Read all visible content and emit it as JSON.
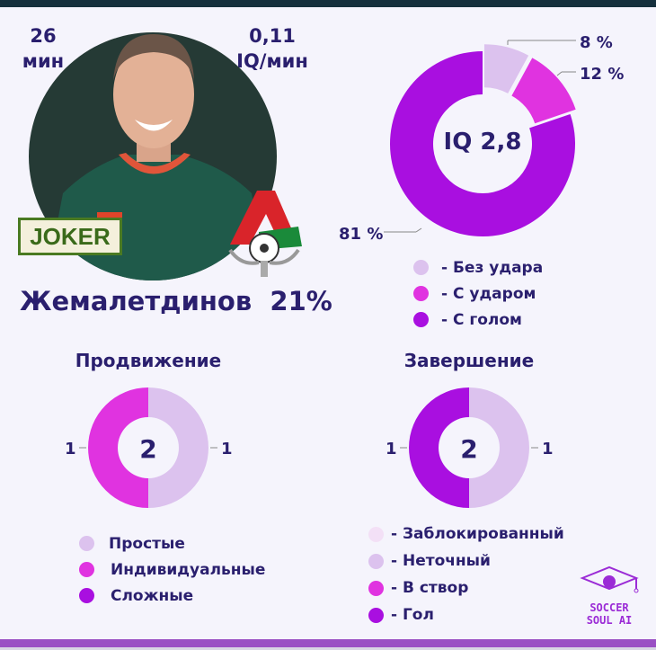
{
  "header": {
    "minutes_value": "26",
    "minutes_unit": "мин",
    "iq_per_min_value": "0,11",
    "iq_per_min_unit": "IQ/мин"
  },
  "player": {
    "name": "Жемалетдинов",
    "percent": "21%",
    "badge": "JOKER",
    "club_logo": "Lokomotiv Moscow"
  },
  "colors": {
    "light": "#dcc2ee",
    "magenta": "#e033e0",
    "purple": "#a90fe0",
    "very_light": "#f3e0f6",
    "text": "#2a1f6e"
  },
  "chart_data": [
    {
      "type": "pie",
      "center_label": "IQ 2,8",
      "slices": [
        {
          "label": "Без удара",
          "value": 8,
          "display": "8 %"
        },
        {
          "label": "С ударом",
          "value": 12,
          "display": "12 %"
        },
        {
          "label": "С голом",
          "value": 81,
          "display": "81 %"
        }
      ],
      "legend": [
        "- Без удара",
        "- С ударом",
        "- С голом"
      ]
    },
    {
      "type": "pie",
      "title": "Продвижение",
      "center_label": "2",
      "slices": [
        {
          "label": "Простые",
          "value": 1,
          "display": "1"
        },
        {
          "label": "Индивидуальные",
          "value": 1,
          "display": "1"
        },
        {
          "label": "Сложные",
          "value": 0
        }
      ],
      "legend": [
        "Простые",
        "Индивидуальные",
        "Сложные"
      ]
    },
    {
      "type": "pie",
      "title": "Завершение",
      "center_label": "2",
      "slices": [
        {
          "label": "Заблокированный",
          "value": 0
        },
        {
          "label": "Неточный",
          "value": 1,
          "display": "1"
        },
        {
          "label": "В створ",
          "value": 0
        },
        {
          "label": "Гол",
          "value": 1,
          "display": "1"
        }
      ],
      "legend": [
        "- Заблокированный",
        "- Неточный",
        "- В створ",
        "- Гол"
      ]
    }
  ],
  "brand": {
    "line1": "SOCCER",
    "line2": "SOUL AI"
  }
}
